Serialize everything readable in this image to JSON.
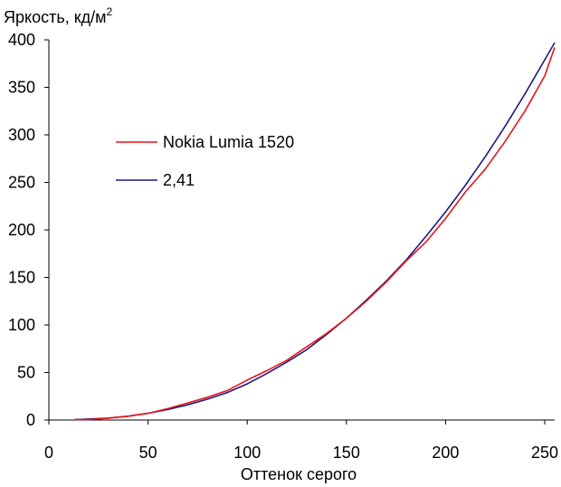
{
  "chart_data": {
    "type": "line",
    "ylabel_main": "Яркость, кд/м",
    "ylabel_sup": "2",
    "xlabel": "Оттенок серого",
    "xlim": [
      0,
      255
    ],
    "ylim": [
      0,
      400
    ],
    "x_ticks": [
      0,
      50,
      100,
      150,
      200,
      250
    ],
    "y_ticks": [
      0,
      50,
      100,
      150,
      200,
      250,
      300,
      350,
      400
    ],
    "grid": false,
    "legend_position": "upper-left",
    "series": [
      {
        "name": "Nokia Lumia 1520",
        "color": "#e8141b",
        "x": [
          13,
          20,
          30,
          40,
          50,
          60,
          70,
          80,
          90,
          100,
          110,
          120,
          130,
          140,
          150,
          160,
          170,
          180,
          190,
          200,
          210,
          220,
          230,
          240,
          250,
          255
        ],
        "y": [
          0.5,
          0.5,
          2,
          4,
          7,
          12,
          18,
          24,
          31,
          42,
          52,
          63,
          77,
          91,
          107,
          125,
          145,
          167,
          187,
          212,
          240,
          264,
          293,
          325,
          362,
          392
        ]
      },
      {
        "name": "2,41",
        "color": "#1a1a7e",
        "x": [
          13,
          20,
          30,
          40,
          50,
          60,
          70,
          80,
          90,
          100,
          110,
          120,
          130,
          140,
          150,
          160,
          170,
          180,
          190,
          200,
          210,
          220,
          230,
          240,
          250,
          255
        ],
        "y": [
          0.5,
          1,
          2,
          4,
          7,
          11,
          16,
          22,
          29,
          38,
          49,
          61,
          74,
          90,
          107,
          126,
          146,
          168,
          193,
          219,
          247,
          277,
          309,
          343,
          379,
          397
        ]
      }
    ]
  }
}
